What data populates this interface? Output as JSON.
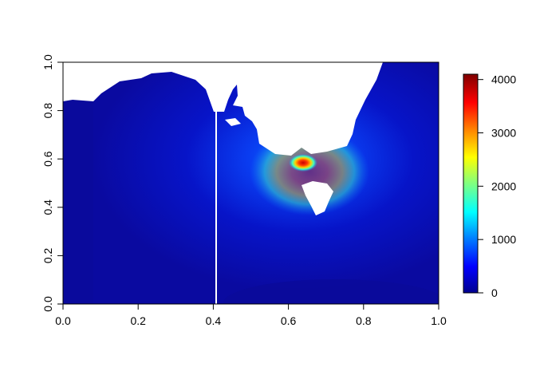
{
  "chart_data": {
    "type": "heatmap",
    "title": "",
    "xlabel": "",
    "ylabel": "",
    "xlim": [
      0,
      1
    ],
    "ylim": [
      0,
      1
    ],
    "x_ticks": [
      "0.0",
      "0.2",
      "0.4",
      "0.6",
      "0.8",
      "1.0"
    ],
    "y_ticks": [
      "0.0",
      "0.2",
      "0.4",
      "0.6",
      "0.8",
      "1.0"
    ],
    "colorbar": {
      "range": [
        0,
        4100
      ],
      "ticks": [
        "0",
        "1000",
        "2000",
        "3000",
        "4000"
      ],
      "colors": [
        "#00008F",
        "#0000FF",
        "#0080FF",
        "#00FFFF",
        "#80FF80",
        "#FFFF00",
        "#FF8000",
        "#FF0000",
        "#800000"
      ]
    },
    "peak_region": {
      "x": 0.64,
      "y": 0.59,
      "value": 4100
    },
    "background_value": 100,
    "colors": {
      "no_data": "#FFFFFF"
    }
  }
}
